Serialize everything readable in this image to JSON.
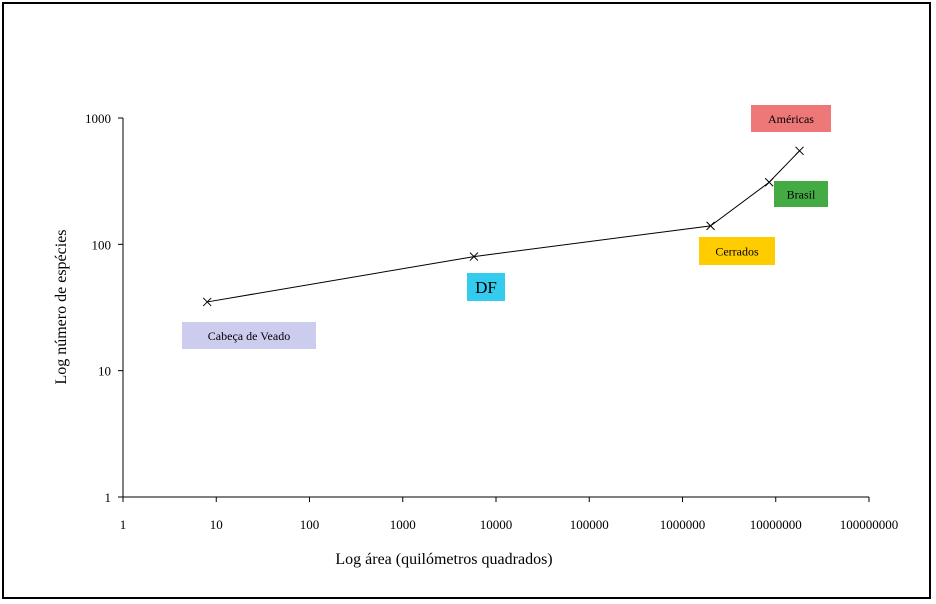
{
  "chart_data": {
    "type": "line",
    "xlabel": "Log área (quilómetros quadrados)",
    "ylabel": "Log número de espécies",
    "xscale": "log",
    "yscale": "log",
    "xlim": [
      1,
      100000000
    ],
    "ylim": [
      1,
      1000
    ],
    "grid": false,
    "x_ticks": [
      "1",
      "10",
      "100",
      "1000",
      "10000",
      "100000",
      "1000000",
      "10000000",
      "100000000"
    ],
    "y_ticks": [
      "1",
      "10",
      "100",
      "1000"
    ],
    "marker": "x",
    "line_color": "#000000",
    "points": [
      {
        "label": "Cabeça de Veado",
        "x": 8,
        "y": 35,
        "color": "#ccccee"
      },
      {
        "label": "DF",
        "x": 5800,
        "y": 80,
        "color": "#33ccee"
      },
      {
        "label": "Cerrados",
        "x": 2000000,
        "y": 140,
        "color": "#ffcc00"
      },
      {
        "label": "Brasil",
        "x": 8500000,
        "y": 310,
        "color": "#44aa44"
      },
      {
        "label": "Américas",
        "x": 18000000,
        "y": 550,
        "color": "#ee7777"
      }
    ]
  }
}
